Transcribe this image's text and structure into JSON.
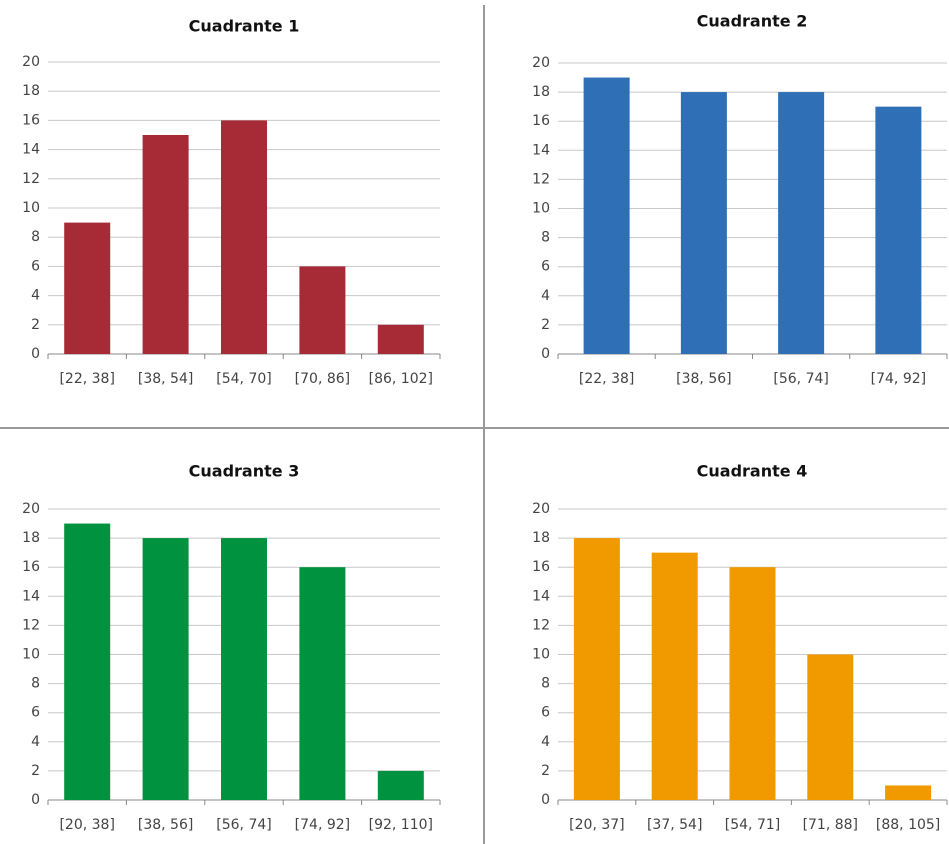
{
  "chart_data": [
    {
      "type": "bar",
      "title": "Cuadrante 1",
      "categories": [
        "[22, 38]",
        "[38, 54]",
        "[54, 70]",
        "[70, 86]",
        "[86, 102]"
      ],
      "values": [
        9,
        15,
        16,
        6,
        2
      ],
      "color": "#a62b37",
      "ylim": [
        0,
        20
      ],
      "yticks": [
        0,
        2,
        4,
        6,
        8,
        10,
        12,
        14,
        16,
        18,
        20
      ],
      "grid": true
    },
    {
      "type": "bar",
      "title": "Cuadrante 2",
      "categories": [
        "[22, 38]",
        "[38, 56]",
        "[56, 74]",
        "[74, 92]"
      ],
      "values": [
        19,
        18,
        18,
        17
      ],
      "color": "#2e6fb5",
      "ylim": [
        0,
        20
      ],
      "yticks": [
        0,
        2,
        4,
        6,
        8,
        10,
        12,
        14,
        16,
        18,
        20
      ],
      "grid": true
    },
    {
      "type": "bar",
      "title": "Cuadrante 3",
      "categories": [
        "[20, 38]",
        "[38, 56]",
        "[56, 74]",
        "[74, 92]",
        "[92, 110]"
      ],
      "values": [
        19,
        18,
        18,
        16,
        2
      ],
      "color": "#00923f",
      "ylim": [
        0,
        20
      ],
      "yticks": [
        0,
        2,
        4,
        6,
        8,
        10,
        12,
        14,
        16,
        18,
        20
      ],
      "grid": true
    },
    {
      "type": "bar",
      "title": "Cuadrante 4",
      "categories": [
        "[20, 37]",
        "[37, 54]",
        "[54, 71]",
        "[71, 88]",
        "[88, 105]"
      ],
      "values": [
        18,
        17,
        16,
        10,
        1
      ],
      "color": "#f09a00",
      "ylim": [
        0,
        20
      ],
      "yticks": [
        0,
        2,
        4,
        6,
        8,
        10,
        12,
        14,
        16,
        18,
        20
      ],
      "grid": true
    }
  ]
}
